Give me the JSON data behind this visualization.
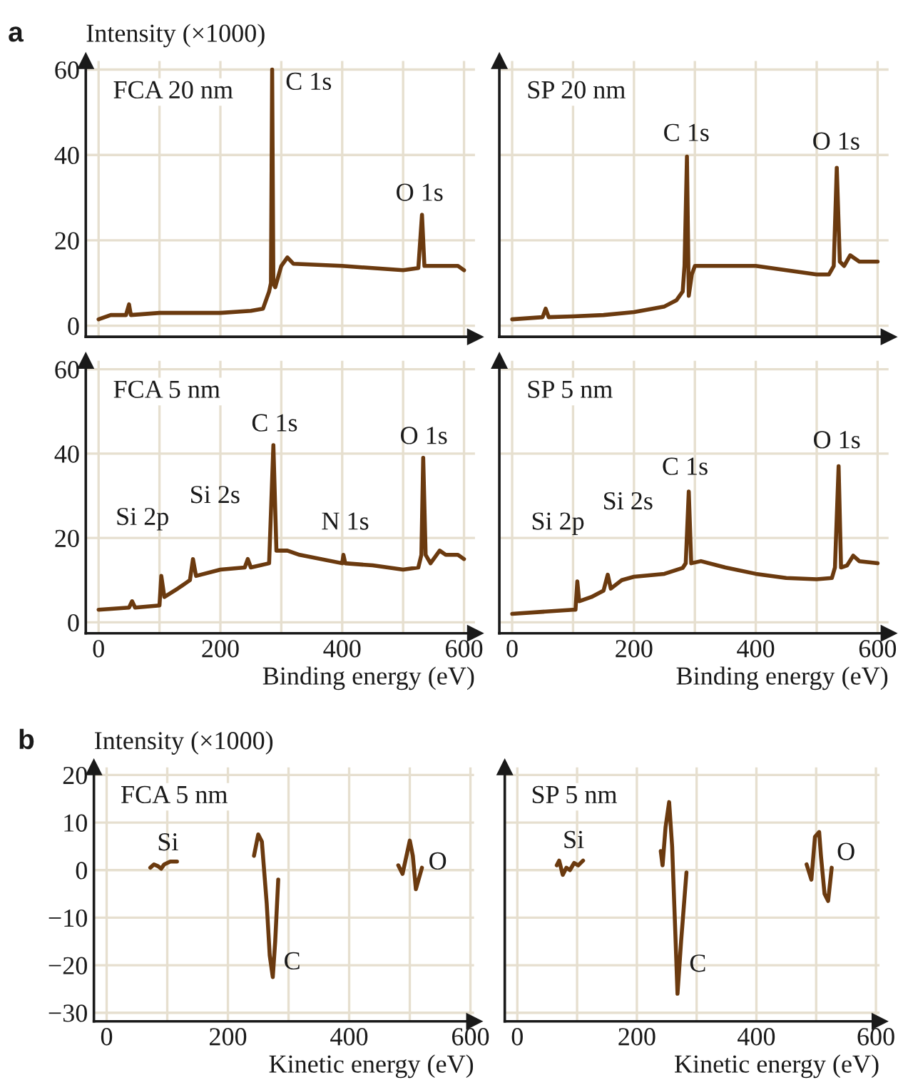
{
  "chart_data": [
    {
      "type": "line",
      "title": "FCA 20 nm",
      "ylabel": "Intensity (×1000)",
      "annotations": [
        "a",
        "C 1s",
        "O 1s"
      ],
      "series": [
        {
          "color": "#6b3a0f",
          "x": [
            0,
            20,
            45,
            50,
            53,
            100,
            150,
            200,
            250,
            270,
            280,
            283,
            285,
            287,
            290,
            300,
            310,
            320,
            400,
            500,
            525,
            531,
            535,
            560,
            590,
            595,
            600
          ],
          "values": [
            1.5,
            2.5,
            2.5,
            5,
            2.5,
            3,
            3,
            3,
            3.5,
            4,
            8,
            10,
            60,
            10,
            9,
            14,
            16,
            14.5,
            14,
            13,
            13.5,
            26,
            14,
            14,
            14,
            13.5,
            13
          ]
        }
      ],
      "xlim": [
        -21,
        618
      ],
      "ylim": [
        -2.6,
        62
      ],
      "xticks": [
        0,
        {
          "value": 100,
          "label": null
        },
        200,
        {
          "value": 300,
          "label": null
        },
        400,
        {
          "value": 500,
          "label": null
        },
        600
      ],
      "yticks": [
        0,
        20,
        40,
        60
      ],
      "grid": true,
      "tick_labels": "y"
    },
    {
      "type": "line",
      "title": "SP 20 nm",
      "annotations": [
        "C 1s",
        "O 1s"
      ],
      "series": [
        {
          "color": "#6b3a0f",
          "x": [
            0,
            50,
            55,
            60,
            100,
            150,
            200,
            250,
            270,
            280,
            283,
            287,
            290,
            295,
            300,
            350,
            400,
            450,
            500,
            520,
            528,
            533,
            538,
            545,
            555,
            570,
            600
          ],
          "values": [
            1.5,
            2,
            4,
            2,
            2.2,
            2.5,
            3.2,
            4.5,
            6,
            8,
            14,
            39.6,
            7,
            12,
            14,
            14,
            14,
            13,
            12,
            12,
            14,
            37,
            15,
            14,
            16.5,
            15,
            15
          ]
        }
      ],
      "xlim": [
        -21,
        618
      ],
      "ylim": [
        -2.6,
        62
      ],
      "xticks": [
        0,
        {
          "value": 100,
          "label": null
        },
        200,
        {
          "value": 300,
          "label": null
        },
        400,
        {
          "value": 500,
          "label": null
        },
        600
      ],
      "yticks": [
        0,
        20,
        40,
        60
      ],
      "grid": true,
      "tick_labels": false
    },
    {
      "type": "line",
      "title": "FCA 5 nm",
      "xlabel": "Binding energy (eV)",
      "annotations": [
        "Si 2p",
        "Si 2s",
        "C 1s",
        "N 1s",
        "O 1s"
      ],
      "series": [
        {
          "color": "#6b3a0f",
          "x": [
            0,
            50,
            55,
            60,
            100,
            103,
            108,
            130,
            150,
            155,
            160,
            200,
            240,
            245,
            250,
            280,
            287,
            292,
            310,
            330,
            400,
            402,
            405,
            450,
            500,
            525,
            530,
            533,
            537,
            545,
            560,
            570,
            590,
            600
          ],
          "values": [
            3,
            3.5,
            5,
            3.5,
            4,
            11,
            6,
            8,
            10,
            15,
            11,
            12.5,
            13,
            15,
            13,
            14,
            42,
            17,
            17,
            16,
            14,
            16,
            14,
            13.5,
            12.5,
            13,
            16,
            39,
            16,
            14,
            17,
            16,
            16,
            15
          ]
        }
      ],
      "xlim": [
        -21,
        618
      ],
      "ylim": [
        -2.6,
        62
      ],
      "xticks": [
        0,
        {
          "value": 100,
          "label": null
        },
        200,
        {
          "value": 300,
          "label": null
        },
        400,
        {
          "value": 500,
          "label": null
        },
        600
      ],
      "yticks": [
        0,
        20,
        40,
        60
      ],
      "grid": true
    },
    {
      "type": "line",
      "title": "SP 5 nm",
      "xlabel": "Binding energy (eV)",
      "annotations": [
        "Si 2p",
        "Si 2s",
        "C 1s",
        "O 1s"
      ],
      "series": [
        {
          "color": "#6b3a0f",
          "x": [
            0,
            50,
            100,
            104,
            107,
            110,
            130,
            150,
            157,
            162,
            180,
            200,
            250,
            280,
            285,
            290,
            294,
            310,
            350,
            400,
            450,
            500,
            525,
            530,
            536,
            540,
            550,
            560,
            570,
            600
          ],
          "values": [
            2,
            2.5,
            3,
            3,
            9.7,
            5,
            6,
            7.5,
            11.3,
            8,
            10,
            10.8,
            11.5,
            12.9,
            14,
            31,
            14,
            14.5,
            13,
            11.5,
            10.5,
            10.2,
            10.5,
            13,
            37,
            13,
            13.5,
            15.8,
            14.5,
            14
          ]
        }
      ],
      "xlim": [
        -21,
        618
      ],
      "ylim": [
        -2.6,
        62
      ],
      "xticks": [
        0,
        {
          "value": 100,
          "label": null
        },
        200,
        {
          "value": 300,
          "label": null
        },
        400,
        {
          "value": 500,
          "label": null
        },
        600
      ],
      "yticks": [
        0,
        20,
        40,
        60
      ],
      "grid": true,
      "tick_labels": "x"
    },
    {
      "type": "line",
      "title": "FCA 5 nm",
      "ylabel": "Intensity (×1000)",
      "xlabel": "Kinetic energy (eV)",
      "annotations": [
        "b",
        "Si",
        "C",
        "O"
      ],
      "series": [
        {
          "color": "#6b3a0f",
          "x": [
            72,
            78,
            85,
            90,
            95,
            105,
            116,
            180,
            243,
            250,
            256,
            264,
            269,
            274,
            278,
            283,
            400,
            481,
            488,
            500,
            505,
            510,
            520
          ],
          "values": [
            0.5,
            1.2,
            0.8,
            0.3,
            1.2,
            1.8,
            1.8,
            null,
            3,
            7.5,
            6,
            -7,
            -18,
            -22.5,
            -15,
            -2,
            null,
            1,
            -0.8,
            6.2,
            3,
            -4,
            0.5
          ]
        }
      ],
      "xlim": [
        -21,
        606
      ],
      "ylim": [
        -31.8,
        21.6
      ],
      "xticks": [
        0,
        {
          "value": 100,
          "label": null
        },
        200,
        {
          "value": 300,
          "label": null
        },
        400,
        {
          "value": 500,
          "label": null
        },
        600
      ],
      "yticks": [
        {
          "value": -30,
          "label": "−30"
        },
        {
          "value": -20,
          "label": "−20"
        },
        {
          "value": -10,
          "label": "−10"
        },
        0,
        10,
        20
      ],
      "grid": true
    },
    {
      "type": "line",
      "title": "SP 5 nm",
      "xlabel": "Kinetic energy (eV)",
      "annotations": [
        "Si",
        "C",
        "O"
      ],
      "series": [
        {
          "color": "#6b3a0f",
          "x": [
            66,
            70,
            76,
            82,
            88,
            95,
            102,
            110,
            180,
            240,
            243,
            248,
            254,
            259,
            264,
            268,
            274,
            283,
            400,
            484,
            492,
            498,
            505,
            508,
            514,
            520,
            526
          ],
          "values": [
            1,
            2,
            -1,
            0.5,
            0,
            1.5,
            1,
            2,
            null,
            4,
            1,
            9,
            14.3,
            5,
            -12,
            -26,
            -15,
            -0.5,
            null,
            1.2,
            -2,
            7,
            8,
            3,
            -5,
            -6.5,
            0.5
          ]
        }
      ],
      "xlim": [
        -21,
        606
      ],
      "ylim": [
        -31.8,
        21.6
      ],
      "xticks": [
        0,
        {
          "value": 100,
          "label": null
        },
        200,
        {
          "value": 300,
          "label": null
        },
        400,
        {
          "value": 500,
          "label": null
        },
        600
      ],
      "yticks": [
        -30,
        -20,
        -10,
        0,
        10,
        20
      ],
      "grid": true,
      "tick_labels": "x"
    }
  ]
}
